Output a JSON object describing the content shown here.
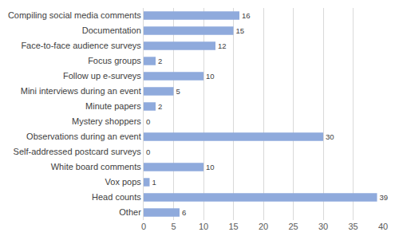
{
  "chart_data": {
    "type": "bar",
    "orientation": "horizontal",
    "categories": [
      "Compiling social media comments",
      "Documentation",
      "Face-to-face audience surveys",
      "Focus groups",
      "Follow up e-surveys",
      "Mini interviews during an event",
      "Minute papers",
      "Mystery shoppers",
      "Observations during an event",
      "Self-addressed postcard surveys",
      "White board comments",
      "Vox pops",
      "Head counts",
      "Other"
    ],
    "values": [
      16,
      15,
      12,
      2,
      10,
      5,
      2,
      0,
      30,
      0,
      10,
      1,
      39,
      6
    ],
    "color": "#8faadc",
    "xlim": [
      0,
      40
    ],
    "xticks": [
      0,
      5,
      10,
      15,
      20,
      25,
      30,
      35,
      40
    ],
    "grid": true,
    "data_labels": true
  }
}
